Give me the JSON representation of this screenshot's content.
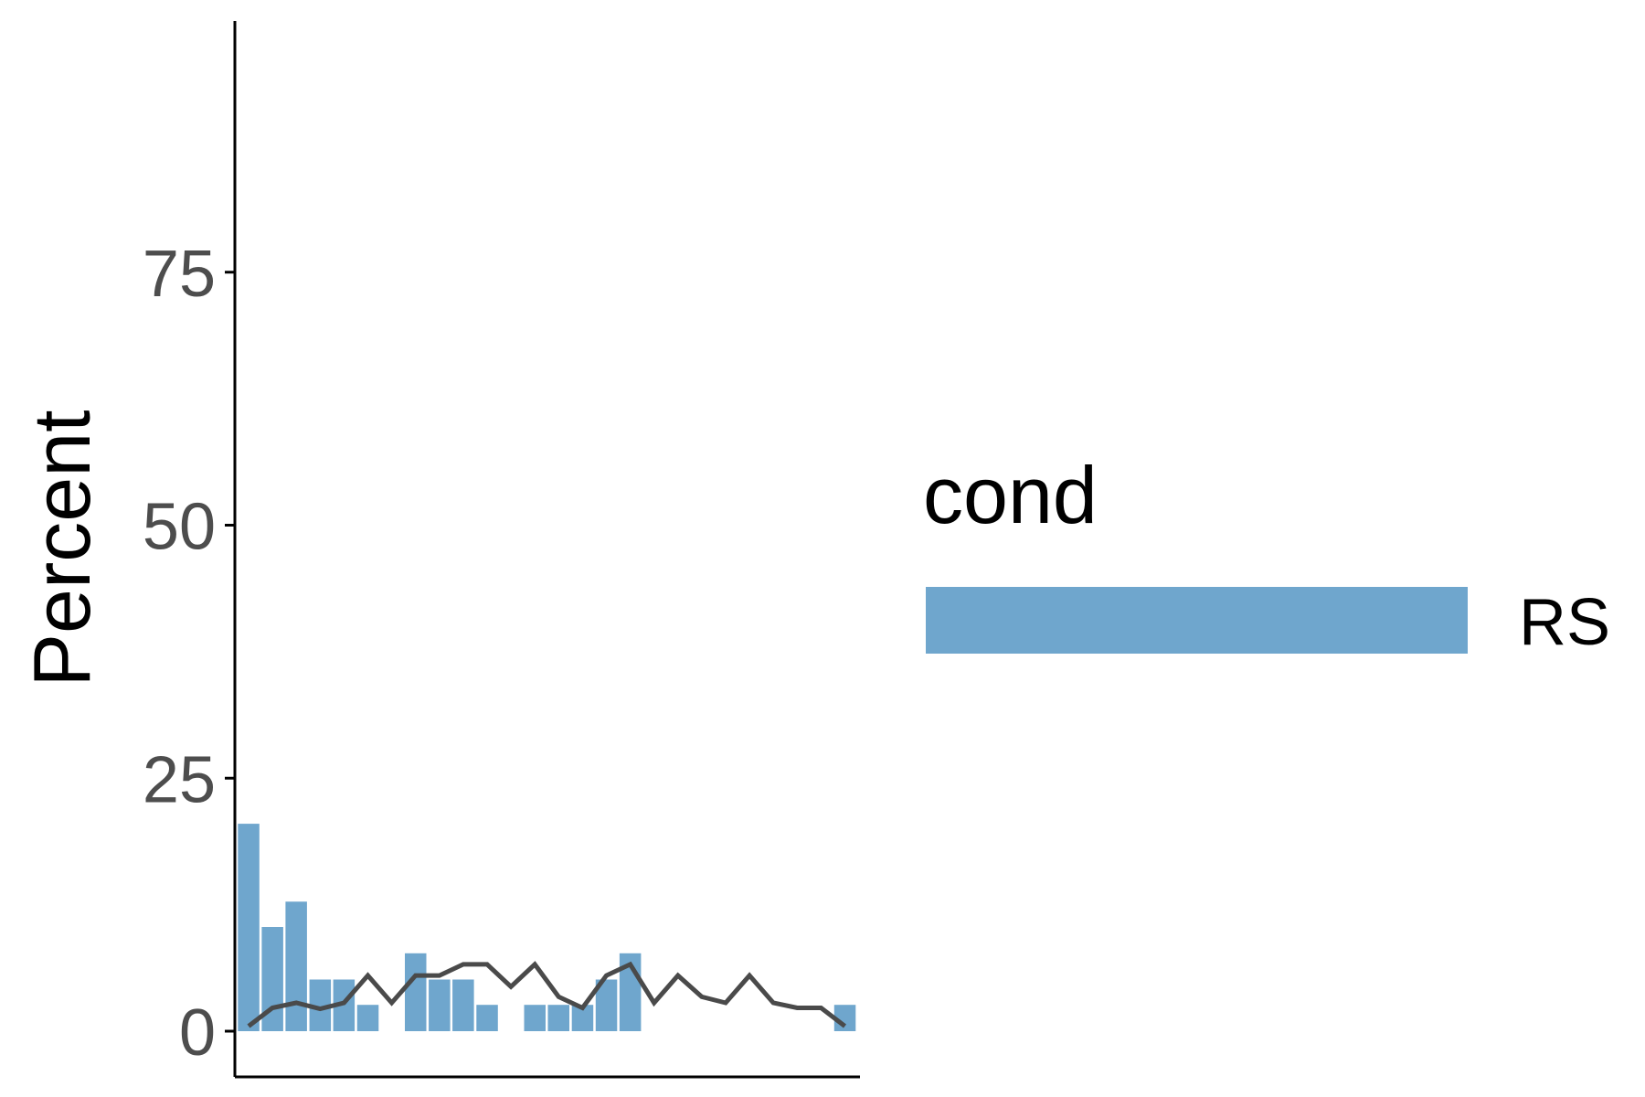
{
  "chart_data": {
    "type": "bar",
    "ylabel": "Percent",
    "xlabel": "",
    "ylim": [
      -5,
      100
    ],
    "yticks": [
      0,
      25,
      50,
      75
    ],
    "grid": false,
    "x": [
      0,
      1,
      2,
      3,
      4,
      5,
      6,
      7,
      8,
      9,
      10,
      11,
      12,
      13,
      14,
      15,
      16,
      17,
      18,
      19,
      20,
      21,
      22,
      23,
      24,
      25
    ],
    "series": [
      {
        "name": "RS",
        "kind": "bar",
        "color": "#6fa6cd",
        "values": [
          20.5,
          10.3,
          12.8,
          5.1,
          5.1,
          2.6,
          0,
          7.7,
          5.1,
          5.1,
          2.6,
          0,
          2.6,
          2.6,
          2.6,
          5.1,
          7.7,
          0,
          0,
          0,
          0,
          0,
          0,
          0,
          0,
          2.6
        ]
      },
      {
        "kind": "line",
        "color": "#4a4a4a",
        "values": [
          0.5,
          2.3,
          2.8,
          2.2,
          2.8,
          5.5,
          2.8,
          5.5,
          5.5,
          6.6,
          6.6,
          4.4,
          6.6,
          3.4,
          2.3,
          5.5,
          6.6,
          2.8,
          5.5,
          3.4,
          2.8,
          5.5,
          2.8,
          2.3,
          2.3,
          0.5
        ]
      }
    ],
    "legend": {
      "title": "cond",
      "placement": "right",
      "entries": [
        {
          "label": "RS",
          "color": "#6fa6cd"
        }
      ]
    }
  }
}
